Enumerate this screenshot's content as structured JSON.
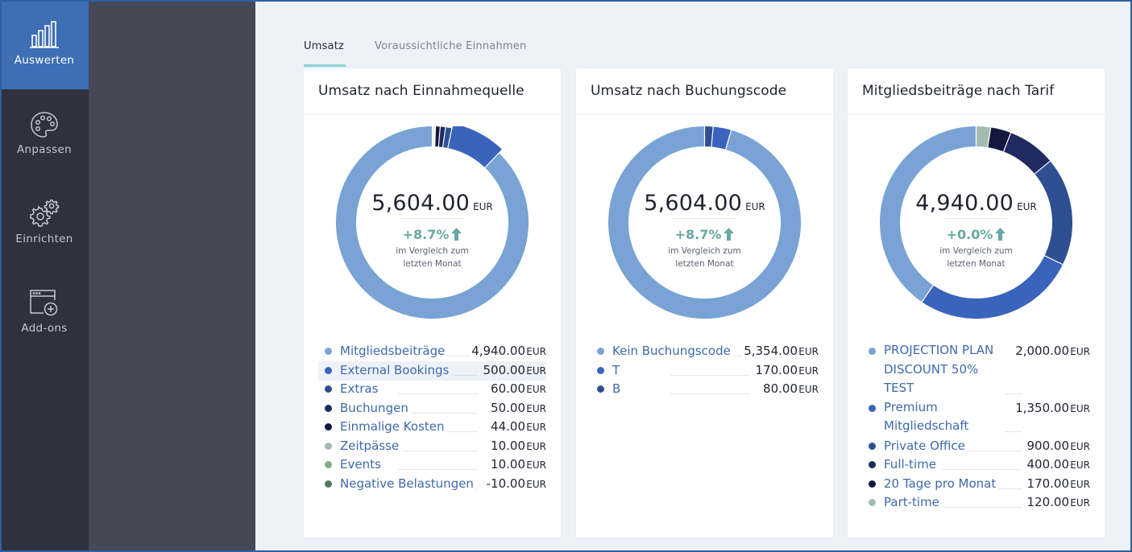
{
  "nav": {
    "items": [
      {
        "label": "Auswerten",
        "icon": "bar-chart-icon"
      },
      {
        "label": "Anpassen",
        "icon": "palette-icon"
      },
      {
        "label": "Einrichten",
        "icon": "gears-icon"
      },
      {
        "label": "Add-ons",
        "icon": "add-window-icon"
      }
    ]
  },
  "tabs": [
    {
      "label": "Umsatz",
      "active": true
    },
    {
      "label": "Voraussichtliche Einnahmen",
      "active": false
    }
  ],
  "cards": [
    {
      "title": "Umsatz nach Einnahmequelle",
      "total": "5,604.00",
      "currency": "EUR",
      "change": "+8.7%",
      "compare_line1": "im Vergleich zum",
      "compare_line2": "letzten Monat",
      "items": [
        {
          "label": "Mitgliedsbeiträge",
          "value": "4,940.00",
          "currency": "EUR",
          "amount": 4940,
          "color": "#78a3d4"
        },
        {
          "label": "External Bookings",
          "value": "500.00",
          "currency": "EUR",
          "amount": 500,
          "color": "#3a63bc",
          "highlighted": true
        },
        {
          "label": "Extras",
          "value": "60.00",
          "currency": "EUR",
          "amount": 60,
          "color": "#2e4f92"
        },
        {
          "label": "Buchungen",
          "value": "50.00",
          "currency": "EUR",
          "amount": 50,
          "color": "#1f2a60"
        },
        {
          "label": "Einmalige Kosten",
          "value": "44.00",
          "currency": "EUR",
          "amount": 44,
          "color": "#15183d"
        },
        {
          "label": "Zeitpässe",
          "value": "10.00",
          "currency": "EUR",
          "amount": 10,
          "color": "#a6bcb0"
        },
        {
          "label": "Events",
          "value": "10.00",
          "currency": "EUR",
          "amount": 10,
          "color": "#86a88e"
        },
        {
          "label": "Negative Belastungen",
          "value": "-10.00",
          "currency": "EUR",
          "amount": 10,
          "color": "#4d7b63"
        }
      ]
    },
    {
      "title": "Umsatz nach Buchungscode",
      "total": "5,604.00",
      "currency": "EUR",
      "change": "+8.7%",
      "compare_line1": "im Vergleich zum",
      "compare_line2": "letzten Monat",
      "items": [
        {
          "label": "Kein Buchungscode",
          "value": "5,354.00",
          "currency": "EUR",
          "amount": 5354,
          "color": "#78a3d4"
        },
        {
          "label": "T",
          "value": "170.00",
          "currency": "EUR",
          "amount": 170,
          "color": "#3a63bc"
        },
        {
          "label": "B",
          "value": "80.00",
          "currency": "EUR",
          "amount": 80,
          "color": "#2e4f92"
        }
      ]
    },
    {
      "title": "Mitgliedsbeiträge nach Tarif",
      "total": "4,940.00",
      "currency": "EUR",
      "change": "+0.0%",
      "compare_line1": "im Vergleich zum",
      "compare_line2": "letzten Monat",
      "items": [
        {
          "label": "PROJECTION PLAN DISCOUNT 50% TEST",
          "value": "2,000.00",
          "currency": "EUR",
          "amount": 2000,
          "color": "#78a3d4",
          "lines": 3
        },
        {
          "label": "Premium Mitgliedschaft",
          "value": "1,350.00",
          "currency": "EUR",
          "amount": 1350,
          "color": "#3a63bc",
          "lines": 2
        },
        {
          "label": "Private Office",
          "value": "900.00",
          "currency": "EUR",
          "amount": 900,
          "color": "#2e4f92"
        },
        {
          "label": "Full-time",
          "value": "400.00",
          "currency": "EUR",
          "amount": 400,
          "color": "#1f2a60"
        },
        {
          "label": "20 Tage pro Monat",
          "value": "170.00",
          "currency": "EUR",
          "amount": 170,
          "color": "#15183d"
        },
        {
          "label": "Part-time",
          "value": "120.00",
          "currency": "EUR",
          "amount": 120,
          "color": "#a6bcb0"
        }
      ]
    }
  ]
}
